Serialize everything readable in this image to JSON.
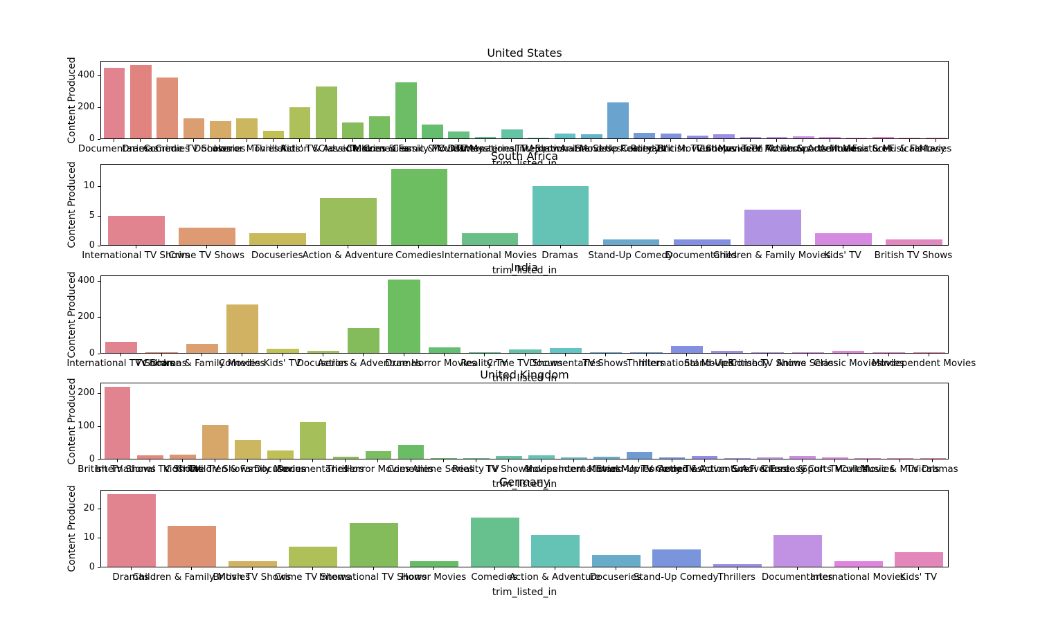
{
  "figure": {
    "background": "#ffffff",
    "text_color": "#000000",
    "axis_color": "#000000",
    "palette_sample": [
      "#e899a7",
      "#e29a78",
      "#b5a94f",
      "#5db75f",
      "#55b2a4",
      "#56b3c6",
      "#a7aee8",
      "#c7a0e6",
      "#e08cd9",
      "#e791b1"
    ]
  },
  "chart_data": [
    {
      "type": "bar",
      "title": "United States",
      "xlabel": "trim_listed_in",
      "ylabel": "Content Produced",
      "yticks": [
        0,
        200,
        400
      ],
      "ylim": [
        0,
        493
      ],
      "grid": false,
      "categories": [
        "Documentaries",
        "Dramas",
        "Comedies",
        "Crime TV Shows",
        "Docuseries",
        "Horror Movies",
        "Thrillers",
        "Kids' TV",
        "Action & Adventure",
        "Classic Movies",
        "TV Comedies",
        "Children & Family Movies",
        "Classic & Cult TV",
        "TV Dramas",
        "TV Mysteries",
        "International TV Shows",
        "TV Horror",
        "International Movies",
        "Anime Series",
        "Stand-Up Comedy",
        "Reality TV",
        "Romantic Movies",
        "British TV Shows",
        "Cult Movies",
        "Independent Movies",
        "Teen TV Shows",
        "TV Action & Adventure",
        "Sports Movies",
        "Anime Features",
        "Music & Musicals",
        "Sci-Fi & Fantasy",
        "Movies"
      ],
      "values": [
        455,
        470,
        393,
        130,
        112,
        127,
        50,
        202,
        335,
        100,
        140,
        360,
        87,
        45,
        8,
        57,
        5,
        33,
        25,
        232,
        35,
        33,
        20,
        25,
        7,
        10,
        13,
        8,
        2,
        10,
        2,
        3
      ]
    },
    {
      "type": "bar",
      "title": "South Africa",
      "xlabel": "trim_listed_in",
      "ylabel": "Content Produced",
      "yticks": [
        0,
        5,
        10
      ],
      "ylim": [
        0,
        13.65
      ],
      "grid": false,
      "categories": [
        "International TV Shows",
        "Crime TV Shows",
        "Docuseries",
        "Action & Adventure",
        "Comedies",
        "International Movies",
        "Dramas",
        "Stand-Up Comedy",
        "Documentaries",
        "Children & Family Movies",
        "Kids' TV",
        "British TV Shows"
      ],
      "values": [
        5,
        3,
        2,
        8,
        13,
        2,
        10,
        1,
        1,
        6,
        2,
        1
      ]
    },
    {
      "type": "bar",
      "title": "India",
      "xlabel": "trim_listed_in",
      "ylabel": "Content Produced",
      "yticks": [
        0,
        200,
        400
      ],
      "ylim": [
        0,
        430
      ],
      "grid": false,
      "categories": [
        "International TV Shows",
        "TV Dramas",
        "Children & Family Movies",
        "Comedies",
        "Kids' TV",
        "Docuseries",
        "Action & Adventure",
        "Dramas",
        "Horror Movies",
        "Reality TV",
        "Crime TV Shows",
        "Documentaries",
        "TV Shows",
        "Thrillers",
        "International Movies",
        "Stand-Up Comedy",
        "British TV Shows",
        "Anime Series",
        "Classic Movies",
        "Movies",
        "Independent Movies"
      ],
      "values": [
        62,
        5,
        50,
        270,
        25,
        12,
        138,
        410,
        30,
        5,
        18,
        28,
        5,
        5,
        38,
        10,
        5,
        4,
        10,
        4,
        3
      ]
    },
    {
      "type": "bar",
      "title": "United Kingdom",
      "xlabel": "trim_listed_in",
      "ylabel": "Content Produced",
      "yticks": [
        0,
        100,
        200
      ],
      "ylim": [
        0,
        231
      ],
      "grid": false,
      "categories": [
        "British TV Shows",
        "International TV Shows",
        "Kids' TV",
        "Crime TV Shows",
        "Children & Family Movies",
        "Docuseries",
        "Documentaries",
        "Thrillers",
        "Horror Movies",
        "Comedies",
        "Anime Series",
        "Reality TV",
        "TV Shows",
        "Movies",
        "Independent Movies",
        "International Movies",
        "Stand-Up Comedy",
        "TV Comedies",
        "Action & Adventure",
        "TV Action & Adventure",
        "Sci-Fi & Fantasy",
        "Classic & Cult TV",
        "Sports Movies",
        "Cult Movies",
        "Music & Musicals",
        "TV Dramas"
      ],
      "values": [
        220,
        10,
        13,
        103,
        57,
        25,
        113,
        7,
        23,
        42,
        2,
        2,
        8,
        11,
        4,
        7,
        22,
        5,
        8,
        1,
        4,
        8,
        4,
        1,
        2,
        2
      ]
    },
    {
      "type": "bar",
      "title": "Germany",
      "xlabel": "trim_listed_in",
      "ylabel": "Content Produced",
      "yticks": [
        0,
        10,
        20
      ],
      "ylim": [
        0,
        26.25
      ],
      "grid": false,
      "categories": [
        "Dramas",
        "Children & Family Movies",
        "British TV Shows",
        "Crime TV Shows",
        "International TV Shows",
        "Horror Movies",
        "Comedies",
        "Action & Adventure",
        "Docuseries",
        "Stand-Up Comedy",
        "Thrillers",
        "Documentaries",
        "International Movies",
        "Kids' TV"
      ],
      "values": [
        25,
        14,
        2,
        7,
        15,
        2,
        17,
        11,
        4,
        6,
        1,
        11,
        2,
        5
      ]
    }
  ]
}
